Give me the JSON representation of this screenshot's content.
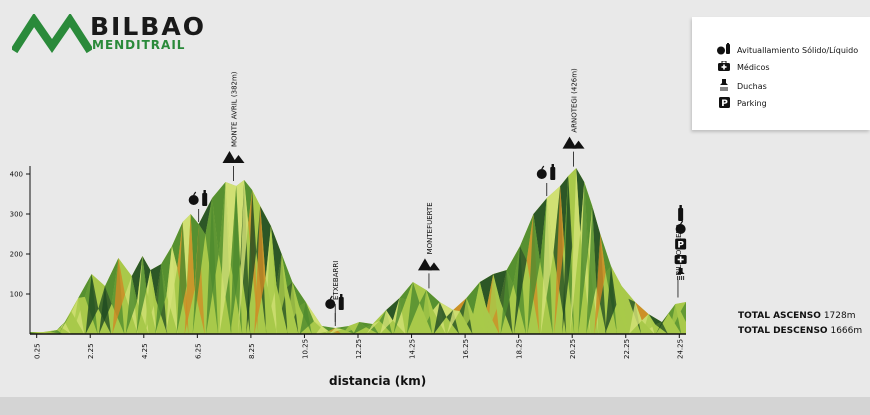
{
  "logo": {
    "title": "BILBAO",
    "subtitle": "MENDITRAIL",
    "accent": "#2a8a3a"
  },
  "legend": {
    "items": [
      {
        "icon": "apple-bottle-icon",
        "label": "Avituallamiento Sólido/Líquido"
      },
      {
        "icon": "medical-kit-icon",
        "label": "Médicos"
      },
      {
        "icon": "shower-icon",
        "label": "Duchas"
      },
      {
        "icon": "parking-icon",
        "label": "Parking"
      }
    ]
  },
  "totals": {
    "ascent_label": "TOTAL ASCENSO",
    "ascent_value": "1728m",
    "descent_label": "TOTAL DESCENSO",
    "descent_value": "1666m"
  },
  "chart_data": {
    "type": "area",
    "title": "",
    "xlabel": "distancia (km)",
    "ylabel": "",
    "xlim": [
      0,
      24.5
    ],
    "ylim": [
      0,
      420
    ],
    "x_ticks": [
      "0.25",
      "2.25",
      "4.25",
      "6.25",
      "8.25",
      "10.25",
      "12.25",
      "14.25",
      "16.25",
      "18.25",
      "20.25",
      "22.25",
      "24.25"
    ],
    "x_tick_values": [
      0.25,
      2.25,
      4.25,
      6.25,
      8.25,
      10.25,
      12.25,
      14.25,
      16.25,
      18.25,
      20.25,
      22.25,
      24.25
    ],
    "y_ticks": [
      "100",
      "200",
      "300",
      "400"
    ],
    "y_tick_values": [
      100,
      200,
      300,
      400
    ],
    "profile": {
      "x": [
        0.0,
        0.5,
        1.0,
        1.3,
        1.8,
        2.3,
        2.8,
        3.3,
        3.8,
        4.2,
        4.5,
        4.9,
        5.3,
        5.7,
        6.0,
        6.3,
        6.8,
        7.3,
        7.7,
        8.0,
        8.3,
        8.6,
        9.0,
        9.4,
        9.8,
        10.3,
        10.9,
        11.4,
        11.9,
        12.3,
        12.8,
        13.3,
        13.8,
        14.3,
        14.8,
        15.3,
        15.8,
        16.3,
        16.8,
        17.3,
        17.8,
        18.3,
        18.8,
        19.3,
        19.8,
        20.1,
        20.4,
        20.7,
        21.0,
        21.3,
        21.7,
        22.1,
        22.6,
        23.1,
        23.6,
        24.1,
        24.5
      ],
      "y": [
        5,
        5,
        10,
        30,
        90,
        150,
        120,
        190,
        145,
        195,
        160,
        175,
        220,
        280,
        300,
        275,
        340,
        380,
        370,
        385,
        360,
        320,
        270,
        200,
        130,
        80,
        20,
        15,
        20,
        30,
        25,
        60,
        90,
        130,
        110,
        80,
        60,
        90,
        130,
        150,
        160,
        220,
        300,
        340,
        370,
        395,
        415,
        380,
        320,
        250,
        170,
        120,
        80,
        50,
        30,
        75,
        80
      ]
    },
    "annotations": [
      {
        "label": "MONTE AVRIL (382m)",
        "x": 7.6,
        "type": "summit"
      },
      {
        "label": "ETXEBARRI",
        "x": 11.4,
        "type": "town"
      },
      {
        "label": "MONTEFUERTE",
        "x": 14.9,
        "type": "summit"
      },
      {
        "label": "ARNOTEGI (426m)",
        "x": 20.3,
        "type": "summit"
      },
      {
        "label": "BILBAO ARENA",
        "x": 24.2,
        "type": "finish"
      }
    ],
    "aid_stations": [
      {
        "x": 6.3,
        "services": [
          "apple-bottle-icon"
        ]
      },
      {
        "x": 11.4,
        "services": [
          "apple-bottle-icon"
        ]
      },
      {
        "x": 19.3,
        "services": [
          "apple-bottle-icon"
        ]
      },
      {
        "x": 24.3,
        "services": [
          "bottle-icon",
          "apple-icon",
          "parking-icon",
          "medical-kit-icon",
          "shower-icon"
        ]
      }
    ],
    "colors": {
      "dark": "#1e4a22",
      "mid": "#4c8a2e",
      "light": "#a8c94a",
      "pale": "#d4e278",
      "orange": "#d08a24",
      "axis": "#111111"
    }
  }
}
